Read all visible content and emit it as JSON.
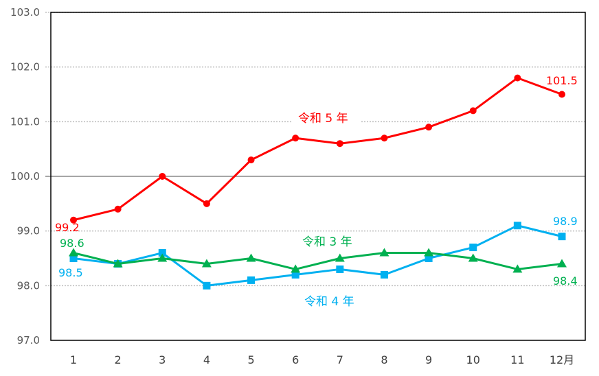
{
  "chart_data": {
    "type": "line",
    "title": "",
    "xlabel": "",
    "ylabel": "",
    "categories": [
      "1",
      "2",
      "3",
      "4",
      "5",
      "6",
      "7",
      "8",
      "9",
      "10",
      "11",
      "12月"
    ],
    "ylim": [
      97.0,
      103.0
    ],
    "yticks": [
      "103.0",
      "102.0",
      "101.0",
      "100.0",
      "99.0",
      "98.0",
      "97.0"
    ],
    "grid": "horizontal dotted; solid reference line at 100.0",
    "legend": "inline labels",
    "series": [
      {
        "name": "令和 5 年",
        "color": "#ff0000",
        "marker": "circle",
        "values": [
          99.2,
          99.4,
          100.0,
          99.5,
          100.3,
          100.7,
          100.6,
          100.7,
          100.9,
          101.2,
          101.8,
          101.5
        ]
      },
      {
        "name": "令和 3 年",
        "color": "#00b050",
        "marker": "triangle",
        "values": [
          98.6,
          98.4,
          98.5,
          98.4,
          98.5,
          98.3,
          98.5,
          98.6,
          98.6,
          98.5,
          98.3,
          98.4
        ]
      },
      {
        "name": "令和 4 年",
        "color": "#00b0f0",
        "marker": "square",
        "values": [
          98.5,
          98.4,
          98.6,
          98.0,
          98.1,
          98.2,
          98.3,
          98.2,
          98.5,
          98.7,
          99.1,
          98.9
        ]
      }
    ],
    "annotations": [
      {
        "text": "99.2",
        "series": "令和 5 年",
        "point": 1
      },
      {
        "text": "101.5",
        "series": "令和 5 年",
        "point": 12
      },
      {
        "text": "98.6",
        "series": "令和 3 年",
        "point": 1
      },
      {
        "text": "98.4",
        "series": "令和 3 年",
        "point": 12
      },
      {
        "text": "98.5",
        "series": "令和 4 年",
        "point": 1
      },
      {
        "text": "98.9",
        "series": "令和 4 年",
        "point": 12
      }
    ]
  },
  "labels": {
    "r5": "令和 5 年",
    "r3": "令和 3 年",
    "r4": "令和 4 年",
    "r5_first": "99.2",
    "r5_last": "101.5",
    "r3_first": "98.6",
    "r3_last": "98.4",
    "r4_first": "98.5",
    "r4_last": "98.9"
  }
}
